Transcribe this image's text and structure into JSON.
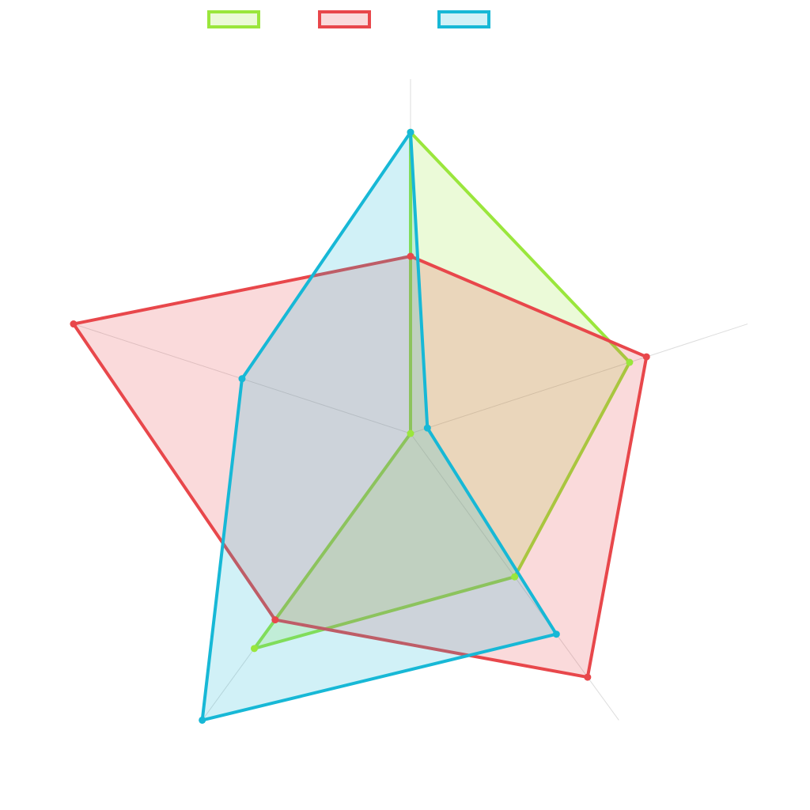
{
  "chart_data": {
    "type": "radar",
    "categories": [
      null,
      null,
      null,
      null,
      null
    ],
    "rlim": [
      0,
      100
    ],
    "series": [
      {
        "color": "#9ae63c",
        "values": [
          85,
          65,
          50,
          75,
          0
        ]
      },
      {
        "color": "#e8474b",
        "values": [
          50,
          70,
          85,
          65,
          100
        ]
      },
      {
        "color": "#17b8d6",
        "values": [
          85,
          5,
          70,
          100,
          50
        ]
      }
    ]
  }
}
